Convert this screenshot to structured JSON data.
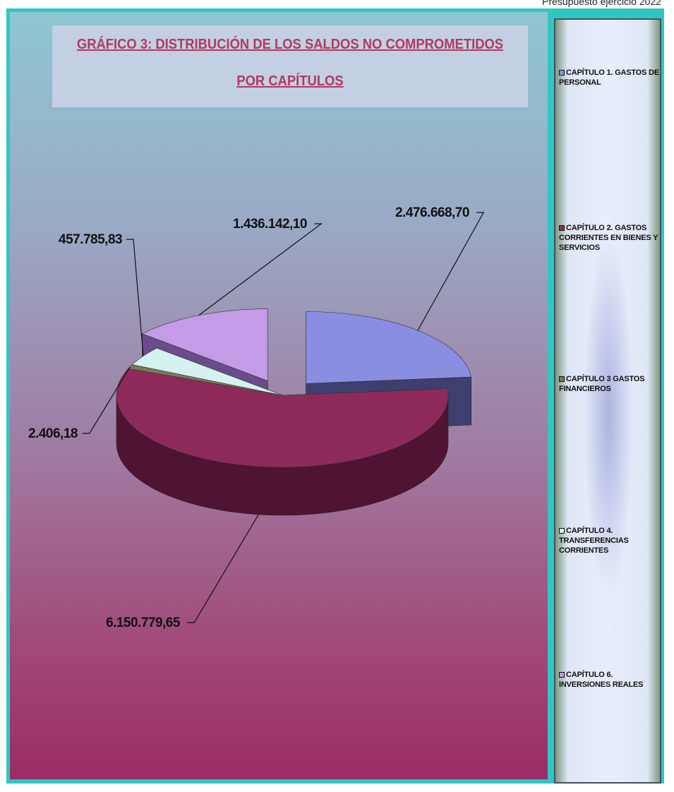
{
  "page_header": "Presupuesto ejercicio 2022",
  "chart_data": {
    "type": "pie",
    "title_line1": "GRÁFICO 3: DISTRIBUCIÓN DE LOS SALDOS NO COMPROMETIDOS",
    "title_line2": "POR CAPÍTULOS",
    "legend_position": "right",
    "categories": [
      "CAPÍTULO 1. GASTOS DE PERSONAL",
      "CAPÍTULO 2. GASTOS CORRIENTES EN BIENES Y SERVICIOS",
      "CAPÍTULO 3 GASTOS FINANCIEROS",
      "CAPÍTULO 4. TRANSFERENCIAS CORRIENTES",
      "CAPÍTULO 6. INVERSIONES REALES"
    ],
    "values": [
      2476668.7,
      6150779.65,
      2406.18,
      457785.83,
      1436142.1
    ],
    "data_labels": [
      "2.476.668,70",
      "6.150.779,65",
      "2.406,18",
      "457.785,83",
      "1.436.142,10"
    ],
    "colors": [
      "#8a8ee0",
      "#8e2a5a",
      "#7a7a58",
      "#d4f2f0",
      "#c39be6"
    ],
    "side_colors": [
      "#3d3f6e",
      "#4e1432",
      "#3f3f28",
      "#8fb6b4",
      "#6b4c8a"
    ],
    "exploded": [
      true,
      false,
      false,
      false,
      true
    ]
  }
}
